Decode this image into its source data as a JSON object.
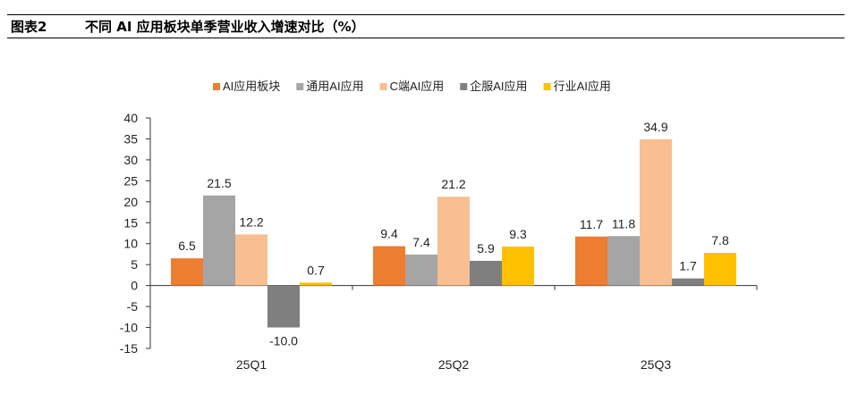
{
  "figure": {
    "label": "图表2",
    "title": "不同 AI 应用板块单季营业收入增速对比（%）"
  },
  "chart_data": {
    "type": "bar",
    "categories": [
      "25Q1",
      "25Q2",
      "25Q3"
    ],
    "series": [
      {
        "name": "AI应用板块",
        "color": "#ED7D31",
        "values": [
          6.5,
          9.4,
          11.7
        ]
      },
      {
        "name": "通用AI应用",
        "color": "#A5A5A5",
        "values": [
          21.5,
          7.4,
          11.8
        ]
      },
      {
        "name": "C端AI应用",
        "color": "#F8BF91",
        "values": [
          12.2,
          21.2,
          34.9
        ]
      },
      {
        "name": "企服AI应用",
        "color": "#7F7F7F",
        "values": [
          -10.0,
          5.9,
          1.7
        ]
      },
      {
        "name": "行业AI应用",
        "color": "#FFC000",
        "values": [
          0.7,
          9.3,
          7.8
        ]
      }
    ],
    "ylim": [
      -15,
      40
    ],
    "yticks": [
      -15,
      -10,
      -5,
      0,
      5,
      10,
      15,
      20,
      25,
      30,
      35,
      40
    ],
    "legend_position": "top-center",
    "grid": false,
    "title": "",
    "xlabel": "",
    "ylabel": ""
  }
}
